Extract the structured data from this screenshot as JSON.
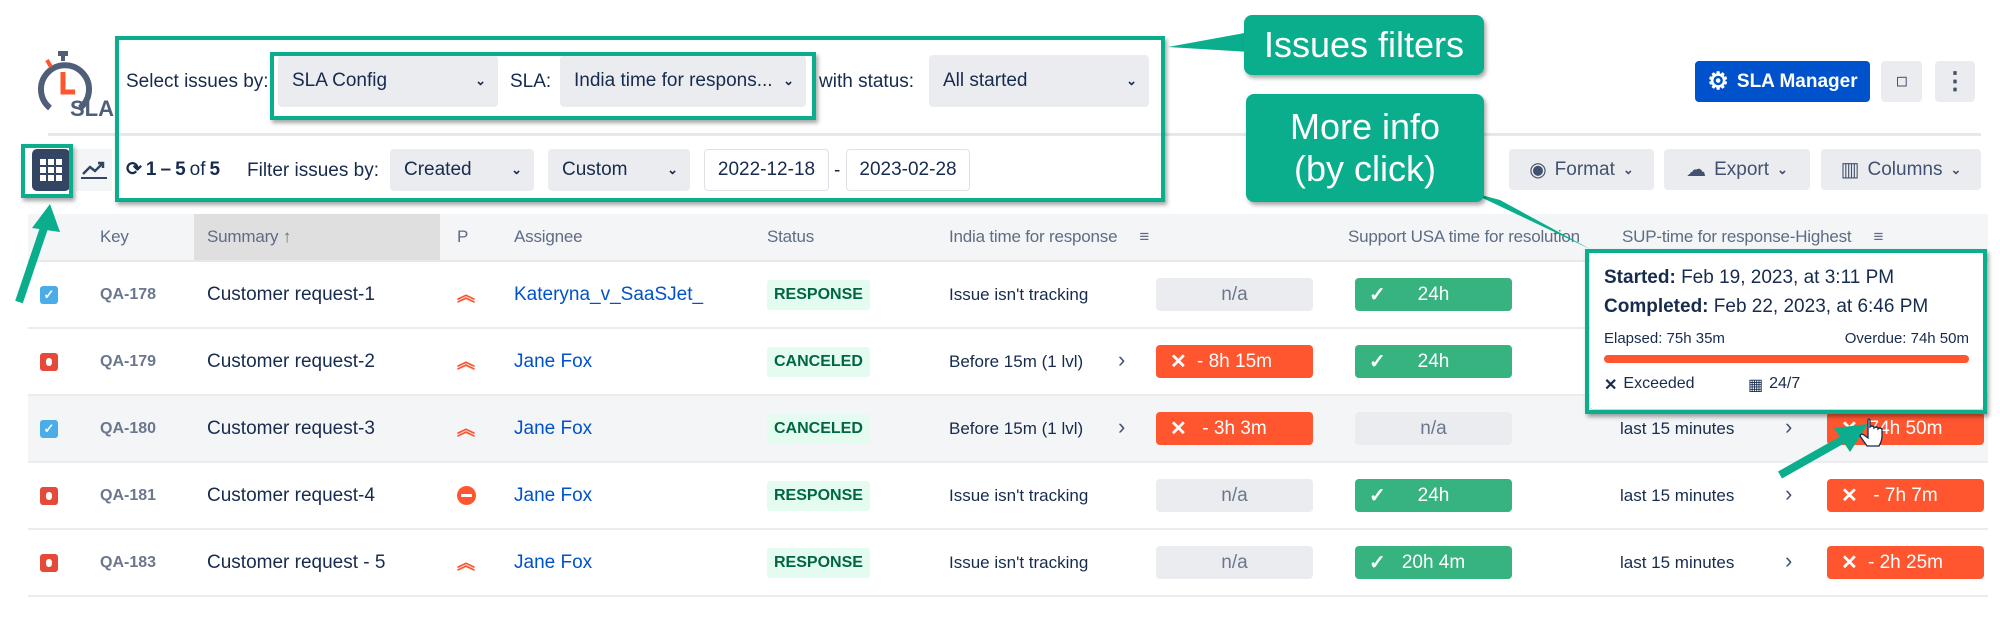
{
  "colors": {
    "accent": "#0bae8c",
    "brand": "#0052cc",
    "breach": "#ff5630",
    "ok": "#36b37e",
    "na": "#ebecf0"
  },
  "logo": {
    "text": "SLA",
    "icon": "stopwatch-icon"
  },
  "filters": {
    "select_by_label": "Select issues by:",
    "select_by_value": "SLA Config",
    "sla_label": "SLA:",
    "sla_value": "India time for respons...",
    "status_label": "with status:",
    "status_value": "All started",
    "count_from": "1",
    "count_dash": "–",
    "count_to": "5",
    "count_of": "of",
    "count_total": "5",
    "filter_by_label": "Filter issues by:",
    "filter_field": "Created",
    "range": "Custom",
    "date_from": "2022-12-18",
    "date_sep": "-",
    "date_to": "2023-02-28"
  },
  "header": {
    "sla_manager": "SLA Manager",
    "format": "Format",
    "export": "Export",
    "columns": "Columns"
  },
  "callouts": {
    "filters": "Issues filters",
    "more_info_1": "More info",
    "more_info_2": "(by click)"
  },
  "table": {
    "columns": [
      "Key",
      "Summary",
      "P",
      "Assignee",
      "Status",
      "India time for response",
      "Support USA time for resolution",
      "SUP-time for response-Highest"
    ],
    "sorted_column": "Summary",
    "rows": [
      {
        "select": "checked",
        "key": "QA-178",
        "summary": "Customer request-1",
        "priority": "highest",
        "assignee": "Kateryna_v_SaaSJet_",
        "status": "RESPONSE",
        "india": {
          "label": "Issue isn't tracking",
          "chevron": false,
          "type": "na",
          "value": "n/a"
        },
        "usa": {
          "type": "ok",
          "value": "24h"
        },
        "sup": null
      },
      {
        "select": "stop",
        "key": "QA-179",
        "summary": "Customer request-2",
        "priority": "highest",
        "assignee": "Jane Fox",
        "status": "CANCELED",
        "india": {
          "label": "Before 15m (1 lvl)",
          "chevron": true,
          "type": "breach",
          "value": "- 8h 15m"
        },
        "usa": {
          "type": "ok",
          "value": "24h"
        },
        "sup": null
      },
      {
        "select": "checked",
        "key": "QA-180",
        "summary": "Customer request-3",
        "priority": "highest",
        "assignee": "Jane Fox",
        "status": "CANCELED",
        "india": {
          "label": "Before 15m (1 lvl)",
          "chevron": true,
          "type": "breach",
          "value": "- 3h 3m"
        },
        "usa": {
          "type": "na",
          "value": "n/a"
        },
        "sup": {
          "label": "last 15 minutes",
          "type": "breach",
          "value": "74h 50m"
        }
      },
      {
        "select": "stop",
        "key": "QA-181",
        "summary": "Customer request-4",
        "priority": "blocker",
        "assignee": "Jane Fox",
        "status": "RESPONSE",
        "india": {
          "label": "Issue isn't tracking",
          "chevron": false,
          "type": "na",
          "value": "n/a"
        },
        "usa": {
          "type": "ok",
          "value": "24h"
        },
        "sup": {
          "label": "last 15 minutes",
          "type": "breach",
          "value": "- 7h 7m"
        }
      },
      {
        "select": "stop",
        "key": "QA-183",
        "summary": "Customer request - 5",
        "priority": "highest",
        "assignee": "Jane Fox",
        "status": "RESPONSE",
        "india": {
          "label": "Issue isn't tracking",
          "chevron": false,
          "type": "na",
          "value": "n/a"
        },
        "usa": {
          "type": "ok",
          "value": "20h 4m"
        },
        "sup": {
          "label": "last 15 minutes",
          "type": "breach",
          "value": "- 2h 25m"
        }
      }
    ]
  },
  "tooltip": {
    "started_label": "Started:",
    "started_value": "Feb 19, 2023, at 3:11 PM",
    "completed_label": "Completed:",
    "completed_value": "Feb 22, 2023, at 6:46 PM",
    "elapsed": "Elapsed: 75h 35m",
    "overdue": "Overdue: 74h 50m",
    "progress_percent": 100,
    "state": "Exceeded",
    "calendar": "24/7"
  }
}
